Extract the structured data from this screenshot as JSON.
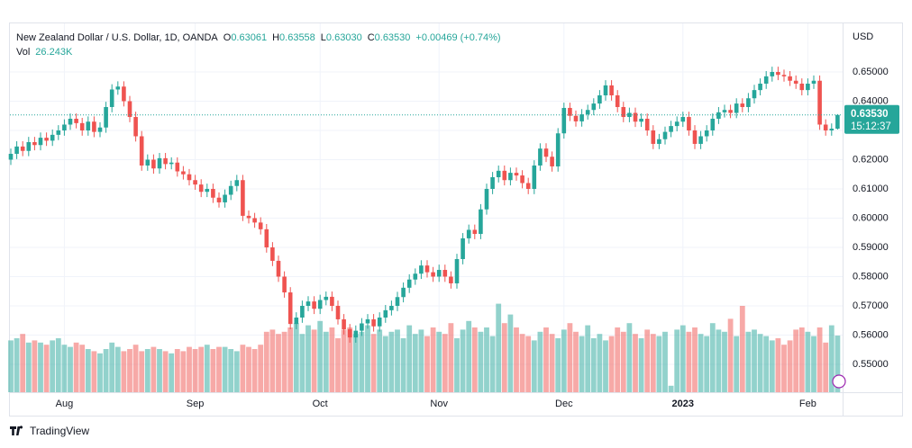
{
  "chart_data": {
    "type": "candlestick",
    "legend": {
      "symbol": "New Zealand Dollar / U.S. Dollar, 1D, OANDA",
      "fields": [
        {
          "key": "O",
          "value": "0.63061"
        },
        {
          "key": "H",
          "value": "0.63558"
        },
        {
          "key": "L",
          "value": "0.63030"
        },
        {
          "key": "C",
          "value": "0.63530"
        }
      ],
      "change": "+0.00469 (+0.74%)",
      "volume_name": "Vol",
      "volume_value": "26.243K"
    },
    "price_tag": {
      "price": "0.63530",
      "countdown": "15:12:37"
    },
    "y_axis_label": "USD",
    "brand": "TradingView",
    "up_color": "#26a69a",
    "down_color": "#ef5350",
    "grid": true,
    "categories": [
      null,
      null,
      null,
      null,
      null,
      null,
      null,
      null,
      null,
      "Aug",
      null,
      null,
      null,
      null,
      null,
      null,
      null,
      null,
      null,
      null,
      null,
      null,
      null,
      null,
      null,
      null,
      null,
      null,
      null,
      null,
      null,
      "Sep",
      null,
      null,
      null,
      null,
      null,
      null,
      null,
      null,
      null,
      null,
      null,
      null,
      null,
      null,
      null,
      null,
      null,
      null,
      null,
      null,
      "Oct",
      null,
      null,
      null,
      null,
      null,
      null,
      null,
      null,
      null,
      null,
      null,
      null,
      null,
      null,
      null,
      null,
      null,
      null,
      null,
      "Nov",
      null,
      null,
      null,
      null,
      null,
      null,
      null,
      null,
      null,
      null,
      null,
      null,
      null,
      null,
      null,
      null,
      null,
      null,
      null,
      null,
      "Dec",
      null,
      null,
      null,
      null,
      null,
      null,
      null,
      null,
      null,
      null,
      null,
      null,
      null,
      null,
      null,
      null,
      null,
      null,
      null,
      "2023",
      null,
      null,
      null,
      null,
      null,
      null,
      null,
      null,
      null,
      null,
      null,
      null,
      null,
      null,
      null,
      null,
      null,
      null,
      null,
      null,
      "Feb",
      null,
      null,
      null,
      null,
      null
    ],
    "open": [
      0.62,
      0.622,
      0.6245,
      0.623,
      0.626,
      0.625,
      0.6275,
      0.6265,
      0.6285,
      0.63,
      0.632,
      0.634,
      0.6325,
      0.63,
      0.633,
      0.6295,
      0.631,
      0.638,
      0.644,
      0.645,
      0.64,
      0.6346,
      0.628,
      0.618,
      0.62,
      0.617,
      0.6205,
      0.6185,
      0.619,
      0.616,
      0.615,
      0.613,
      0.6115,
      0.609,
      0.61,
      0.607,
      0.6054,
      0.608,
      0.611,
      0.613,
      0.6008,
      0.6,
      0.5985,
      0.5962,
      0.59,
      0.5854,
      0.58,
      0.5746,
      0.5638,
      0.566,
      0.57,
      0.5715,
      0.569,
      0.572,
      0.5731,
      0.57,
      0.5654,
      0.562,
      0.5592,
      0.5615,
      0.564,
      0.5654,
      0.563,
      0.566,
      0.5685,
      0.57,
      0.573,
      0.5762,
      0.579,
      0.581,
      0.5838,
      0.5815,
      0.58,
      0.5823,
      0.58,
      0.5777,
      0.586,
      0.5931,
      0.596,
      0.5946,
      0.603,
      0.61,
      0.614,
      0.6162,
      0.613,
      0.6155,
      0.6146,
      0.612,
      0.61,
      0.618,
      0.6238,
      0.621,
      0.6177,
      0.629,
      0.6377,
      0.635,
      0.6331,
      0.6355,
      0.637,
      0.6392,
      0.642,
      0.6454,
      0.642,
      0.638,
      0.6346,
      0.636,
      0.633,
      0.634,
      0.63,
      0.6254,
      0.627,
      0.6295,
      0.6315,
      0.633,
      0.6346,
      0.63,
      0.6254,
      0.628,
      0.63,
      0.634,
      0.6362,
      0.637,
      0.636,
      0.6392,
      0.638,
      0.641,
      0.6438,
      0.646,
      0.6485,
      0.65,
      0.649,
      0.6485,
      0.647,
      0.646,
      0.6438,
      0.646,
      0.647,
      0.632,
      0.63,
      0.63061
    ],
    "high": [
      0.6238,
      0.6263,
      0.6263,
      0.6278,
      0.6278,
      0.6293,
      0.6293,
      0.6303,
      0.6318,
      0.6338,
      0.6358,
      0.6358,
      0.6343,
      0.6348,
      0.6348,
      0.6328,
      0.6398,
      0.6458,
      0.6468,
      0.6468,
      0.6418,
      0.6364,
      0.6298,
      0.6218,
      0.6218,
      0.6223,
      0.6223,
      0.6208,
      0.6208,
      0.6178,
      0.6168,
      0.6148,
      0.6133,
      0.6118,
      0.6118,
      0.6088,
      0.6098,
      0.6128,
      0.6148,
      0.6148,
      0.6026,
      0.6018,
      0.6003,
      0.598,
      0.5918,
      0.5872,
      0.5818,
      0.5764,
      0.5678,
      0.5718,
      0.5733,
      0.5733,
      0.5738,
      0.5749,
      0.5749,
      0.5718,
      0.5672,
      0.5638,
      0.5633,
      0.5658,
      0.5672,
      0.5672,
      0.5678,
      0.5703,
      0.5718,
      0.5748,
      0.578,
      0.5808,
      0.5828,
      0.5856,
      0.5856,
      0.5833,
      0.5841,
      0.5841,
      0.5818,
      0.5878,
      0.5949,
      0.5978,
      0.5978,
      0.6048,
      0.6118,
      0.6158,
      0.618,
      0.618,
      0.6173,
      0.6173,
      0.6164,
      0.6138,
      0.6198,
      0.6256,
      0.6256,
      0.6228,
      0.6308,
      0.6395,
      0.6395,
      0.6368,
      0.6373,
      0.6388,
      0.641,
      0.6438,
      0.6472,
      0.6472,
      0.6438,
      0.6398,
      0.6378,
      0.6378,
      0.6358,
      0.6358,
      0.6318,
      0.6288,
      0.6313,
      0.6333,
      0.6348,
      0.6364,
      0.6364,
      0.6318,
      0.6298,
      0.6318,
      0.6358,
      0.638,
      0.6388,
      0.6388,
      0.641,
      0.641,
      0.6428,
      0.6456,
      0.6478,
      0.6503,
      0.6518,
      0.6518,
      0.6508,
      0.6503,
      0.6488,
      0.6478,
      0.6478,
      0.6488,
      0.6488,
      0.6338,
      0.6324,
      0.63558
    ],
    "low": [
      0.6182,
      0.6202,
      0.6212,
      0.6212,
      0.6232,
      0.6232,
      0.6247,
      0.6247,
      0.6267,
      0.6282,
      0.6302,
      0.6307,
      0.6282,
      0.6282,
      0.6277,
      0.6277,
      0.6292,
      0.6362,
      0.6422,
      0.6382,
      0.6328,
      0.6262,
      0.6162,
      0.6162,
      0.6152,
      0.6152,
      0.6167,
      0.6167,
      0.6142,
      0.6132,
      0.6112,
      0.6097,
      0.6072,
      0.6072,
      0.6052,
      0.6036,
      0.6036,
      0.6062,
      0.6092,
      0.599,
      0.5982,
      0.5967,
      0.5944,
      0.5882,
      0.5836,
      0.5782,
      0.5728,
      0.562,
      0.562,
      0.5642,
      0.5682,
      0.5672,
      0.5672,
      0.5702,
      0.5682,
      0.5636,
      0.5602,
      0.5574,
      0.5574,
      0.5597,
      0.5622,
      0.5612,
      0.5612,
      0.5642,
      0.5667,
      0.5682,
      0.5712,
      0.5744,
      0.5772,
      0.5792,
      0.5797,
      0.5782,
      0.5782,
      0.5782,
      0.5759,
      0.5759,
      0.5842,
      0.5913,
      0.5928,
      0.5928,
      0.6012,
      0.6082,
      0.6122,
      0.6112,
      0.6112,
      0.6128,
      0.6102,
      0.6082,
      0.6082,
      0.6162,
      0.6192,
      0.6159,
      0.6159,
      0.6272,
      0.6332,
      0.6313,
      0.6313,
      0.6337,
      0.6352,
      0.6374,
      0.6402,
      0.6402,
      0.6362,
      0.6328,
      0.6328,
      0.6312,
      0.6312,
      0.6282,
      0.6236,
      0.6236,
      0.6252,
      0.6277,
      0.6297,
      0.6312,
      0.6282,
      0.6236,
      0.6236,
      0.6262,
      0.6282,
      0.6322,
      0.6344,
      0.6342,
      0.6342,
      0.6362,
      0.6362,
      0.6392,
      0.642,
      0.6442,
      0.6467,
      0.6472,
      0.6467,
      0.6452,
      0.6442,
      0.642,
      0.642,
      0.6442,
      0.6302,
      0.6282,
      0.6282,
      0.6303
    ],
    "close": [
      0.622,
      0.6245,
      0.623,
      0.626,
      0.625,
      0.6275,
      0.6265,
      0.6285,
      0.63,
      0.632,
      0.634,
      0.6325,
      0.63,
      0.633,
      0.6295,
      0.631,
      0.638,
      0.644,
      0.645,
      0.64,
      0.6346,
      0.628,
      0.618,
      0.62,
      0.617,
      0.6205,
      0.6185,
      0.619,
      0.616,
      0.615,
      0.613,
      0.6115,
      0.609,
      0.61,
      0.607,
      0.6054,
      0.608,
      0.611,
      0.613,
      0.6008,
      0.6,
      0.5985,
      0.5962,
      0.59,
      0.5854,
      0.58,
      0.5746,
      0.5638,
      0.566,
      0.57,
      0.5715,
      0.569,
      0.572,
      0.5731,
      0.57,
      0.5654,
      0.562,
      0.5592,
      0.5615,
      0.564,
      0.5654,
      0.563,
      0.566,
      0.5685,
      0.57,
      0.573,
      0.5762,
      0.579,
      0.581,
      0.5838,
      0.5815,
      0.58,
      0.5823,
      0.58,
      0.5777,
      0.586,
      0.5931,
      0.596,
      0.5946,
      0.603,
      0.61,
      0.614,
      0.6162,
      0.613,
      0.6155,
      0.6146,
      0.612,
      0.61,
      0.618,
      0.6238,
      0.621,
      0.6177,
      0.629,
      0.6377,
      0.635,
      0.6331,
      0.6355,
      0.637,
      0.6392,
      0.642,
      0.6454,
      0.642,
      0.638,
      0.6346,
      0.636,
      0.633,
      0.634,
      0.63,
      0.6254,
      0.627,
      0.6295,
      0.6315,
      0.633,
      0.6346,
      0.63,
      0.6254,
      0.628,
      0.63,
      0.634,
      0.6362,
      0.637,
      0.636,
      0.6392,
      0.638,
      0.641,
      0.6438,
      0.646,
      0.6485,
      0.65,
      0.649,
      0.6485,
      0.647,
      0.646,
      0.6438,
      0.646,
      0.647,
      0.632,
      0.63,
      0.6306,
      0.6353
    ],
    "volume": [
      24,
      25,
      27,
      23,
      24,
      23,
      22,
      24,
      25,
      22,
      21,
      23,
      22,
      20,
      19,
      18,
      20,
      23,
      21,
      19,
      20,
      22,
      19,
      20,
      21,
      20,
      19,
      18,
      20,
      19,
      21,
      20,
      21,
      22,
      20,
      21,
      21,
      20,
      19,
      22,
      21,
      20,
      22,
      28,
      29,
      27,
      28,
      30,
      32,
      27,
      31,
      29,
      33,
      28,
      30,
      25,
      29,
      30,
      27,
      28,
      31,
      27,
      29,
      26,
      28,
      29,
      25,
      31,
      27,
      29,
      26,
      30,
      28,
      27,
      32,
      25,
      29,
      33,
      30,
      28,
      30,
      26,
      41,
      32,
      36,
      30,
      27,
      26,
      24,
      28,
      30,
      27,
      25,
      29,
      32,
      28,
      26,
      31,
      25,
      27,
      24,
      26,
      30,
      28,
      32,
      27,
      25,
      29,
      27,
      26,
      28,
      3,
      29,
      31,
      28,
      30,
      27,
      26,
      32,
      29,
      28,
      34,
      26,
      40,
      28,
      29,
      27,
      26,
      24,
      25,
      22,
      24,
      29,
      30,
      28,
      26,
      30,
      23,
      31,
      26.243
    ],
    "volume_lim": [
      0,
      45
    ],
    "ylim": [
      0.54046,
      0.66538
    ],
    "yticks": [
      {
        "value": 0.55,
        "label": "0.55000"
      },
      {
        "value": 0.56,
        "label": "0.56000"
      },
      {
        "value": 0.57,
        "label": "0.57000"
      },
      {
        "value": 0.58,
        "label": "0.58000"
      },
      {
        "value": 0.59,
        "label": "0.59000"
      },
      {
        "value": 0.6,
        "label": "0.60000"
      },
      {
        "value": 0.61,
        "label": "0.61000"
      },
      {
        "value": 0.62,
        "label": "0.62000"
      },
      {
        "value": 0.63,
        "label": "0.63000"
      },
      {
        "value": 0.64,
        "label": "0.64000"
      },
      {
        "value": 0.65,
        "label": "0.65000"
      }
    ]
  }
}
